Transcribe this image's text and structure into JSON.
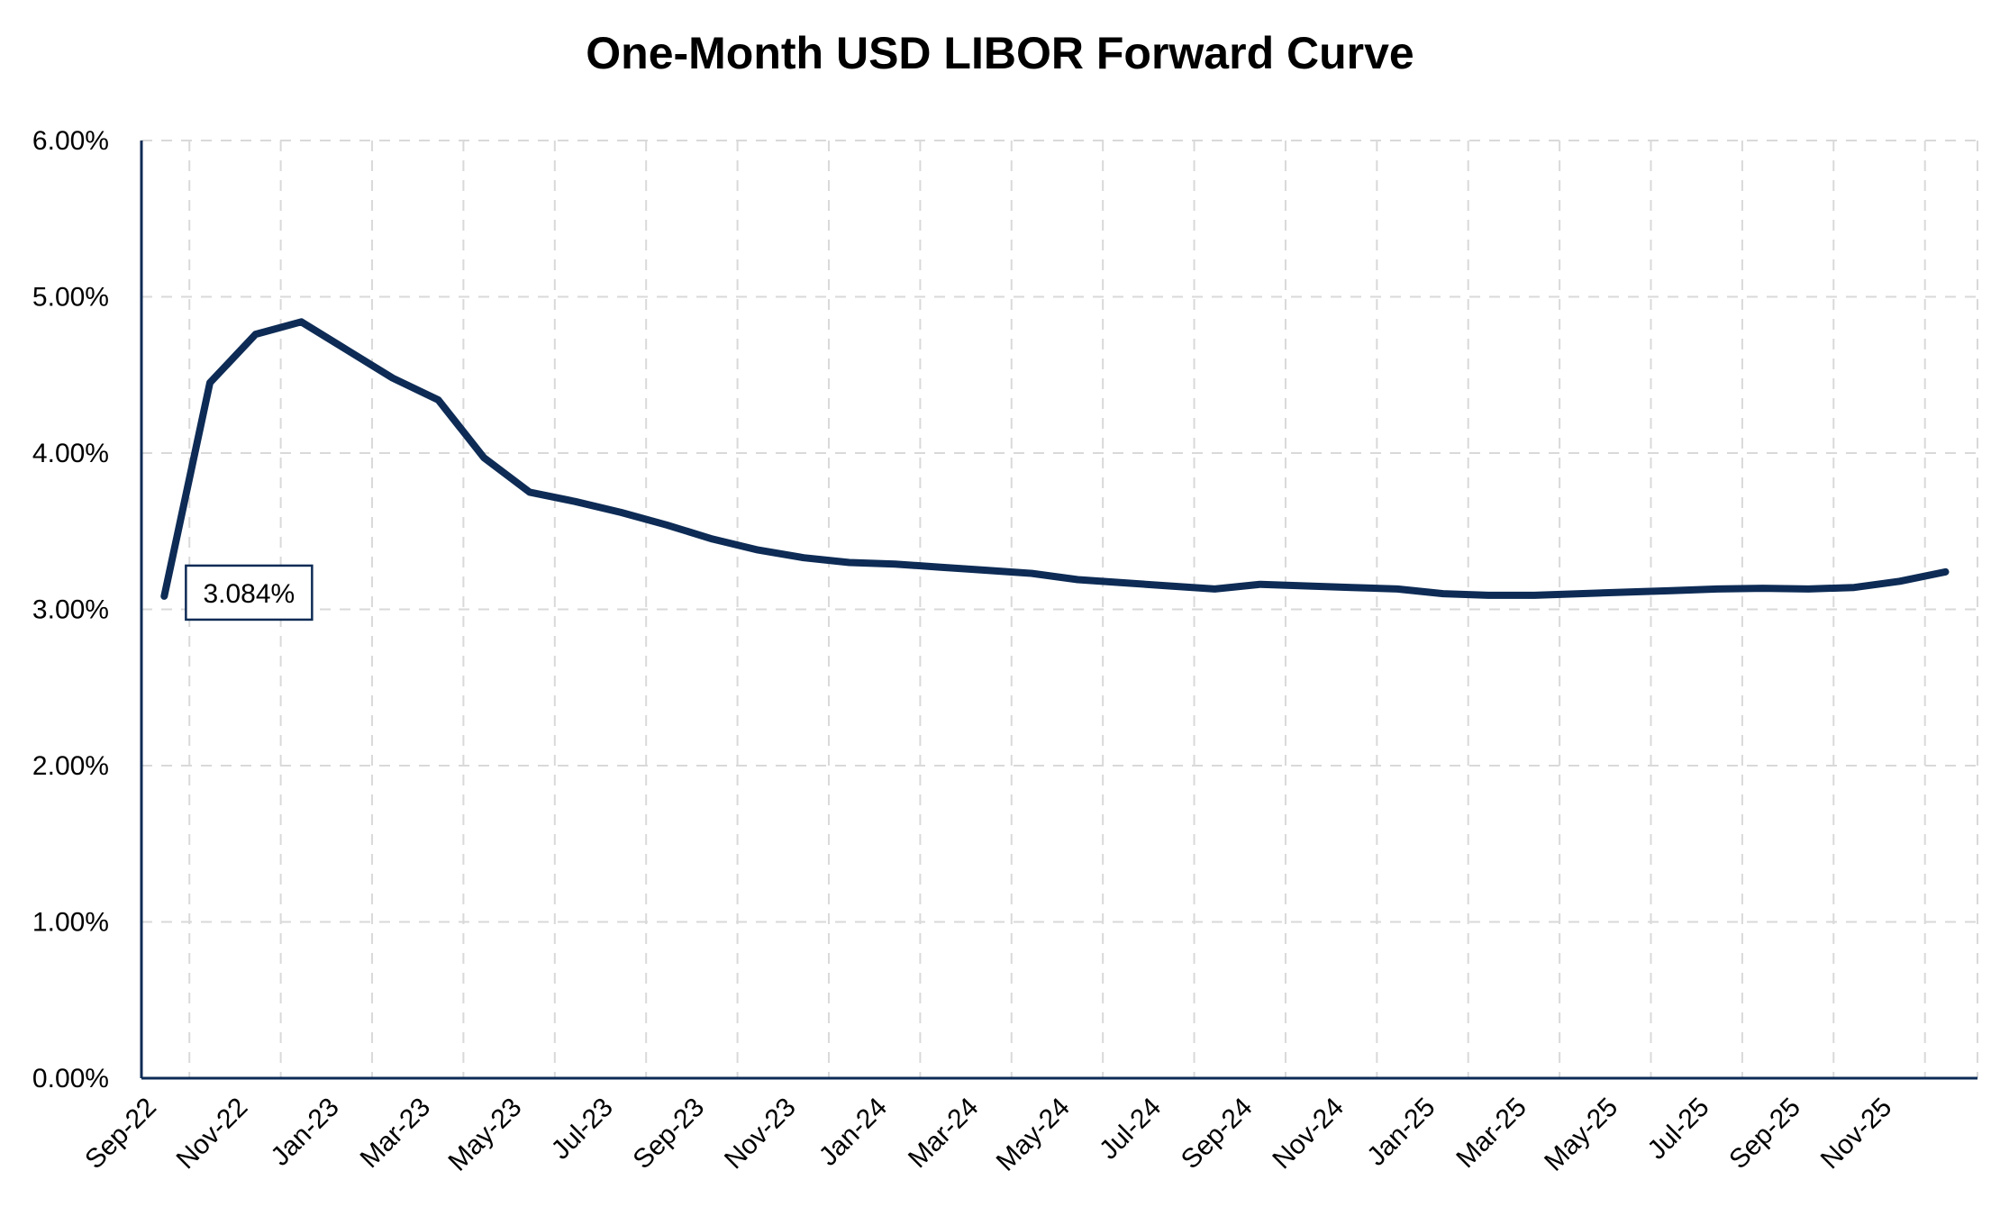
{
  "chart_data": {
    "type": "line",
    "title": "One-Month USD LIBOR Forward Curve",
    "xlabel": "",
    "ylabel": "",
    "ylim": [
      0,
      6
    ],
    "y_ticks": [
      "0.00%",
      "1.00%",
      "2.00%",
      "3.00%",
      "4.00%",
      "5.00%",
      "6.00%"
    ],
    "x_tick_labels": [
      "Sep-22",
      "Nov-22",
      "Jan-23",
      "Mar-23",
      "May-23",
      "Jul-23",
      "Sep-23",
      "Nov-23",
      "Jan-24",
      "Mar-24",
      "May-24",
      "Jul-24",
      "Sep-24",
      "Nov-24",
      "Jan-25",
      "Mar-25",
      "May-25",
      "Jul-25",
      "Sep-25",
      "Nov-25"
    ],
    "grid": true,
    "legend": "none",
    "line_color": "#0d2b55",
    "series": [
      {
        "x": [
          "Sep-22",
          "Oct-22",
          "Nov-22",
          "Dec-22",
          "Jan-23",
          "Feb-23",
          "Mar-23",
          "Apr-23",
          "May-23",
          "Jun-23",
          "Jul-23",
          "Aug-23",
          "Sep-23",
          "Oct-23",
          "Nov-23",
          "Dec-23",
          "Jan-24",
          "Feb-24",
          "Mar-24",
          "Apr-24",
          "May-24",
          "Jun-24",
          "Jul-24",
          "Aug-24",
          "Sep-24",
          "Oct-24",
          "Nov-24",
          "Dec-24",
          "Jan-25",
          "Feb-25",
          "Mar-25",
          "Apr-25",
          "May-25",
          "Jun-25",
          "Jul-25",
          "Aug-25",
          "Sep-25",
          "Oct-25",
          "Nov-25",
          "Dec-25"
        ],
        "values": [
          3.084,
          4.45,
          4.76,
          4.84,
          4.66,
          4.48,
          4.34,
          3.97,
          3.75,
          3.69,
          3.62,
          3.54,
          3.45,
          3.38,
          3.33,
          3.3,
          3.29,
          3.27,
          3.25,
          3.23,
          3.19,
          3.17,
          3.15,
          3.13,
          3.16,
          3.15,
          3.14,
          3.13,
          3.1,
          3.09,
          3.09,
          3.1,
          3.11,
          3.12,
          3.13,
          3.135,
          3.13,
          3.14,
          3.18,
          3.24
        ]
      }
    ],
    "annotations": [
      {
        "label": "3.084%",
        "x": "Sep-22",
        "y": 3.084
      }
    ]
  }
}
